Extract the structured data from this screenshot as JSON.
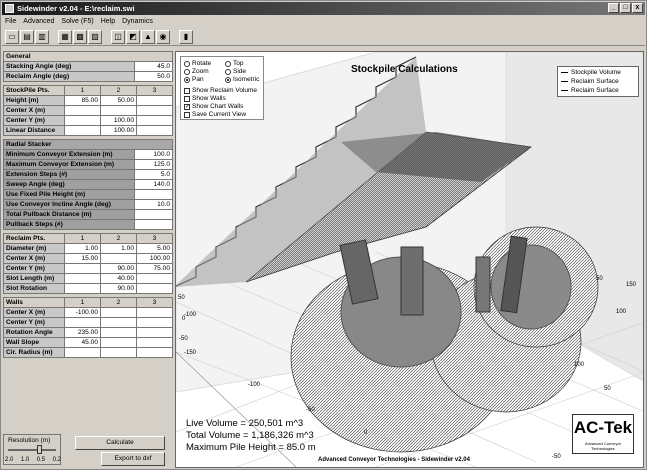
{
  "window": {
    "title": "Sidewinder v2.04 - E:\\reclaim.swi",
    "controls": [
      "_",
      "□",
      "x"
    ]
  },
  "menu": [
    "File",
    "Advanced",
    "Solve (F5)",
    "Help",
    "Dynamics"
  ],
  "toolbar_icons": [
    "open-icon",
    "save-icon",
    "print-icon",
    "table-icon",
    "grid-icon",
    "chart-icon",
    "view-icon",
    "zoom-icon",
    "plot-3d-icon",
    "camera-icon",
    "book-icon"
  ],
  "general": {
    "title": "General",
    "rows": [
      {
        "label": "Stacking Angle (deg)",
        "value": "45.0"
      },
      {
        "label": "Reclaim Angle (deg)",
        "value": "50.0"
      }
    ]
  },
  "stockpile": {
    "header": [
      "StockPile Pts.",
      "1",
      "2",
      "3"
    ],
    "rows": [
      {
        "label": "Height (m)",
        "values": [
          "85.00",
          "50.00",
          ""
        ]
      },
      {
        "label": "Center X (m)",
        "values": [
          "",
          "",
          ""
        ]
      },
      {
        "label": "Center Y (m)",
        "values": [
          "",
          "100.00",
          ""
        ]
      },
      {
        "label": "Linear Distance",
        "values": [
          "",
          "100.00",
          ""
        ]
      }
    ]
  },
  "radial": {
    "title": "Radial Stacker",
    "rows": [
      {
        "label": "Minimum Conveyor Extension (m)",
        "value": "100.0"
      },
      {
        "label": "Maximum Conveyor Extension (m)",
        "value": "125.0"
      },
      {
        "label": "Extension Steps (#)",
        "value": "5.0"
      },
      {
        "label": "Sweep Angle (deg)",
        "value": "140.0"
      },
      {
        "label": "Use Fixed Pile Height (m)",
        "value": ""
      },
      {
        "label": "Use Conveyor Incline Angle (deg)",
        "value": "10.0"
      },
      {
        "label": "Total Pullback Distance (m)",
        "value": ""
      },
      {
        "label": "Pullback Steps (#)",
        "value": ""
      }
    ]
  },
  "reclaim": {
    "header": [
      "Reclaim Pts.",
      "1",
      "2",
      "3"
    ],
    "rows": [
      {
        "label": "Diameter (m)",
        "values": [
          "1.00",
          "1.00",
          "5.00"
        ]
      },
      {
        "label": "Center X (m)",
        "values": [
          "15.00",
          "",
          "100.00"
        ]
      },
      {
        "label": "Center Y (m)",
        "values": [
          "",
          "90.00",
          "75.00"
        ]
      },
      {
        "label": "Slot Length (m)",
        "values": [
          "",
          "40.00",
          ""
        ]
      },
      {
        "label": "Slot Rotation",
        "values": [
          "",
          "90.00",
          ""
        ]
      }
    ]
  },
  "walls": {
    "header": [
      "Walls",
      "1",
      "2",
      "3"
    ],
    "rows": [
      {
        "label": "Center X (m)",
        "values": [
          "-100.00",
          "",
          ""
        ]
      },
      {
        "label": "Center Y (m)",
        "values": [
          "",
          "",
          ""
        ]
      },
      {
        "label": "Rotation Angle",
        "values": [
          "235.00",
          "",
          ""
        ]
      },
      {
        "label": "Wall Slope",
        "values": [
          "45.00",
          "",
          ""
        ]
      },
      {
        "label": "Cir. Radius (m)",
        "values": [
          "",
          "",
          ""
        ]
      }
    ]
  },
  "controls": {
    "resolution_label": "Resolution (m)",
    "resolution_ticks": [
      "2.0",
      "1.0",
      "0.5",
      "0.2"
    ],
    "resolution_value": 0.5,
    "calculate": "Calculate",
    "export": "Export to dxf"
  },
  "view": {
    "title": "Stockpile Calculations",
    "modes": [
      {
        "label": "Rotate",
        "selected": false
      },
      {
        "label": "Top",
        "selected": false
      },
      {
        "label": "Zoom",
        "selected": false
      },
      {
        "label": "Side",
        "selected": false
      },
      {
        "label": "Pan",
        "selected": true
      },
      {
        "label": "Isometric",
        "selected": true
      }
    ],
    "checks": [
      {
        "label": "Show Reclaim Volume",
        "checked": false
      },
      {
        "label": "Show Walls",
        "checked": false
      },
      {
        "label": "Show Chart Walls",
        "checked": true
      },
      {
        "label": "Save Current View",
        "checked": false
      }
    ],
    "legend": [
      "Stockpile Volume",
      "Reclaim Surface",
      "Reclaim Surface"
    ],
    "axis_labels": [
      "50",
      "0",
      "-50",
      "-100",
      "-150",
      "-100",
      "-50",
      "0",
      "50",
      "100",
      "150",
      "100",
      "50",
      "-50"
    ],
    "stats": [
      "Live Volume = 250,501 m^3",
      "Total Volume = 1,186,326 m^3",
      "Maximum Pile Height = 85.0 m"
    ],
    "footer": "Advanced Conveyor Technologies - Sidewinder v2.04",
    "logo": "AC-Tek",
    "logo_sub": "Advanced Conveyor Technologies"
  }
}
